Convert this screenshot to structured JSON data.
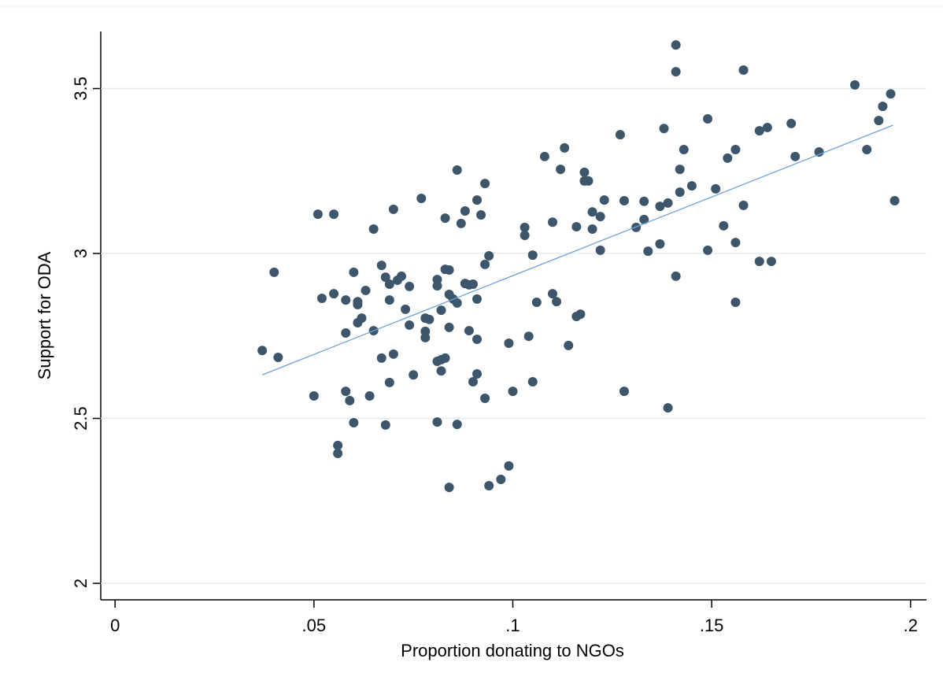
{
  "chart_data": {
    "type": "scatter",
    "x_label": "Proportion donating to NGOs",
    "y_label": "Support for ODA",
    "xlim": [
      -0.0036,
      0.204
    ],
    "ylim": [
      1.95,
      3.673
    ],
    "xticks": [
      0,
      {
        "value": 0.05,
        "label": ".05"
      },
      {
        "value": 0.1,
        "label": ".1"
      },
      {
        "value": 0.15,
        "label": ".15"
      },
      {
        "value": 0.2,
        "label": ".2"
      }
    ],
    "yticks": [
      2,
      2.5,
      3,
      3.5
    ],
    "grid": true,
    "color": "#3d566c",
    "x": [
      0.037,
      0.04,
      0.041,
      0.051,
      0.05,
      0.052,
      0.055,
      0.055,
      0.056,
      0.056,
      0.058,
      0.058,
      0.058,
      0.059,
      0.06,
      0.06,
      0.061,
      0.061,
      0.061,
      0.062,
      0.063,
      0.064,
      0.065,
      0.065,
      0.067,
      0.067,
      0.068,
      0.068,
      0.069,
      0.069,
      0.069,
      0.07,
      0.07,
      0.071,
      0.072,
      0.073,
      0.074,
      0.074,
      0.075,
      0.077,
      0.078,
      0.078,
      0.078,
      0.079,
      0.081,
      0.081,
      0.081,
      0.081,
      0.082,
      0.082,
      0.082,
      0.083,
      0.083,
      0.083,
      0.084,
      0.084,
      0.084,
      0.084,
      0.085,
      0.086,
      0.086,
      0.086,
      0.087,
      0.088,
      0.088,
      0.089,
      0.09,
      0.089,
      0.09,
      0.091,
      0.091,
      0.091,
      0.091,
      0.092,
      0.093,
      0.093,
      0.093,
      0.094,
      0.094,
      0.097,
      0.099,
      0.099,
      0.1,
      0.103,
      0.103,
      0.104,
      0.105,
      0.105,
      0.106,
      0.108,
      0.11,
      0.11,
      0.111,
      0.112,
      0.113,
      0.114,
      0.116,
      0.116,
      0.117,
      0.118,
      0.118,
      0.119,
      0.12,
      0.12,
      0.122,
      0.122,
      0.123,
      0.127,
      0.128,
      0.128,
      0.131,
      0.133,
      0.133,
      0.134,
      0.137,
      0.137,
      0.138,
      0.139,
      0.139,
      0.141,
      0.141,
      0.141,
      0.142,
      0.142,
      0.143,
      0.145,
      0.149,
      0.149,
      0.151,
      0.153,
      0.154,
      0.156,
      0.156,
      0.156,
      0.158,
      0.158,
      0.162,
      0.162,
      0.164,
      0.165,
      0.17,
      0.171,
      0.177,
      0.186,
      0.189,
      0.192,
      0.193,
      0.195,
      0.196
    ],
    "values": [
      2.706,
      2.943,
      2.685,
      3.119,
      2.568,
      2.864,
      3.119,
      2.878,
      2.418,
      2.394,
      2.759,
      2.582,
      2.859,
      2.554,
      2.943,
      2.487,
      2.845,
      2.854,
      2.79,
      2.804,
      2.888,
      2.568,
      2.766,
      3.074,
      2.964,
      2.683,
      2.928,
      2.48,
      2.859,
      2.609,
      2.907,
      3.134,
      2.695,
      2.919,
      2.931,
      2.831,
      2.783,
      2.9,
      2.632,
      3.167,
      2.745,
      2.804,
      2.764,
      2.8,
      2.489,
      2.673,
      2.902,
      2.921,
      2.828,
      2.644,
      2.678,
      3.107,
      2.683,
      2.952,
      2.876,
      2.776,
      2.291,
      2.95,
      2.862,
      2.482,
      2.85,
      3.253,
      3.091,
      3.129,
      2.909,
      2.905,
      2.907,
      2.766,
      2.611,
      3.162,
      2.74,
      2.862,
      2.635,
      3.117,
      2.967,
      2.561,
      3.212,
      2.993,
      2.296,
      2.315,
      2.356,
      2.728,
      2.582,
      3.079,
      3.055,
      2.749,
      2.995,
      2.611,
      2.852,
      3.294,
      3.095,
      2.878,
      2.854,
      3.255,
      3.32,
      2.721,
      3.081,
      2.809,
      2.816,
      3.246,
      3.22,
      3.22,
      3.126,
      3.074,
      3.112,
      3.01,
      3.162,
      3.36,
      3.16,
      2.582,
      3.079,
      3.103,
      3.158,
      3.007,
      3.143,
      3.029,
      3.379,
      3.153,
      2.532,
      2.931,
      3.632,
      3.551,
      3.255,
      3.186,
      3.315,
      3.205,
      3.408,
      3.01,
      3.196,
      3.084,
      3.289,
      3.315,
      3.033,
      2.852,
      3.556,
      3.146,
      3.372,
      2.976,
      3.382,
      2.976,
      3.394,
      3.294,
      3.308,
      3.511,
      3.315,
      3.403,
      3.446,
      3.484,
      3.16
    ],
    "fit": {
      "x": [
        0.037,
        0.1956
      ],
      "values": [
        2.632,
        3.389
      ],
      "color": "#6fa3d8"
    }
  }
}
